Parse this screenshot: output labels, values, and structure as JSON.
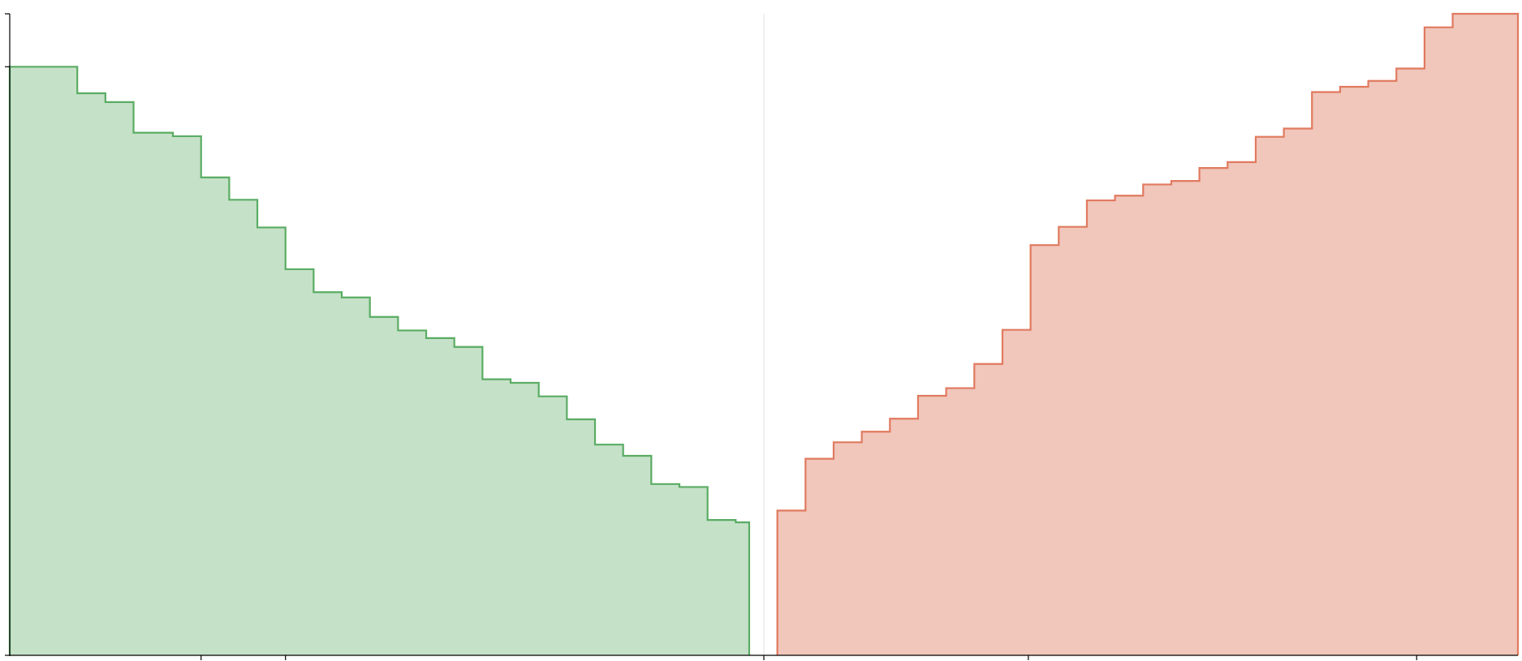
{
  "chart_data": {
    "type": "area",
    "title": "",
    "xlabel": "",
    "ylabel": "",
    "step": "post",
    "xlim": [
      -3.2,
      10.2
    ],
    "ylim": [
      0,
      1.09
    ],
    "grid": false,
    "center_line_x": 3.5,
    "x_ticks": [
      -1.5,
      -0.75,
      3.5,
      5.85,
      9.3
    ],
    "y_ticks": [
      0,
      1.0,
      1.09
    ],
    "series": [
      {
        "color": "#5aac63",
        "fill": "#c5e1c8",
        "x": [
          -3.2,
          -2.6,
          -2.35,
          -2.1,
          -1.75,
          -1.5,
          -1.25,
          -1.0,
          -0.75,
          -0.5,
          -0.25,
          0.0,
          0.25,
          0.5,
          0.75,
          1.0,
          1.25,
          1.5,
          1.75,
          2.0,
          2.25,
          2.5,
          2.75,
          3.0,
          3.25
        ],
        "values": [
          1.0,
          0.955,
          0.94,
          0.888,
          0.882,
          0.812,
          0.774,
          0.727,
          0.656,
          0.617,
          0.608,
          0.575,
          0.552,
          0.539,
          0.524,
          0.469,
          0.463,
          0.44,
          0.401,
          0.358,
          0.339,
          0.291,
          0.286,
          0.23,
          0.226
        ],
        "x_end": 3.37
      },
      {
        "color": "#e07a5f",
        "fill": "#f1c6bb",
        "x": [
          3.62,
          3.87,
          4.12,
          4.37,
          4.62,
          4.87,
          5.12,
          5.37,
          5.62,
          5.87,
          6.12,
          6.37,
          6.62,
          6.87,
          7.12,
          7.37,
          7.62,
          7.87,
          8.12,
          8.37,
          8.62,
          8.87,
          9.12,
          9.37,
          9.62
        ],
        "values": [
          0.246,
          0.334,
          0.362,
          0.38,
          0.402,
          0.441,
          0.454,
          0.495,
          0.553,
          0.697,
          0.728,
          0.773,
          0.781,
          0.8,
          0.806,
          0.828,
          0.838,
          0.881,
          0.895,
          0.957,
          0.966,
          0.976,
          0.997,
          1.067,
          1.09
        ],
        "x_end": 10.2
      }
    ]
  }
}
